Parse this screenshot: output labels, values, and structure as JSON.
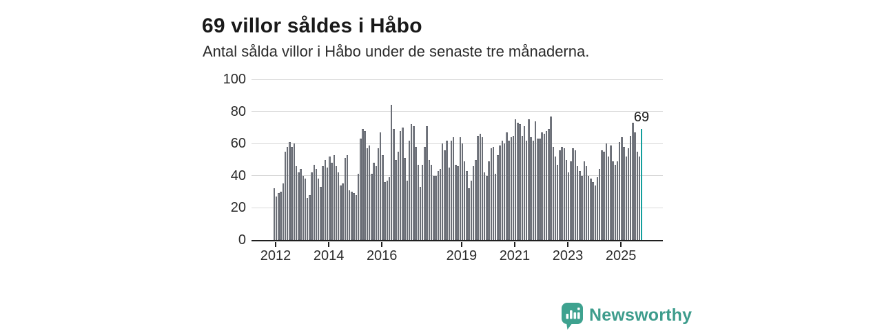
{
  "header": {
    "title": "69 villor såldes i Håbo",
    "subtitle": "Antal sålda villor i Håbo under de senaste tre månaderna."
  },
  "branding": {
    "name": "Newsworthy",
    "logo_color": "#3ea28f",
    "icon": "speech-bubble-bar-chart"
  },
  "chart_data": {
    "type": "bar",
    "title": "69 villor såldes i Håbo",
    "subtitle": "Antal sålda villor i Håbo under de senaste tre månaderna.",
    "xlabel": "",
    "ylabel": "",
    "x_start": "2012-01",
    "x_interval": "month",
    "x_end": "2025-11",
    "x_ticks": [
      2012,
      2014,
      2016,
      2019,
      2021,
      2023,
      2025
    ],
    "y_ticks": [
      0,
      20,
      40,
      60,
      80,
      100
    ],
    "ylim": [
      0,
      100
    ],
    "grid": "horizontal",
    "legend": "none",
    "bar_color": "#82858d",
    "highlight_color": "#19a8a6",
    "highlight_last": true,
    "annotation": {
      "text": "69",
      "target": "last-bar"
    },
    "values": [
      32,
      27,
      29,
      30,
      35,
      55,
      58,
      61,
      58,
      60,
      46,
      42,
      44,
      40,
      38,
      26,
      28,
      42,
      47,
      44,
      38,
      33,
      46,
      50,
      45,
      52,
      48,
      53,
      46,
      42,
      34,
      35,
      51,
      53,
      31,
      30,
      29,
      28,
      41,
      63,
      69,
      68,
      57,
      59,
      41,
      48,
      46,
      57,
      67,
      53,
      36,
      37,
      39,
      84,
      69,
      50,
      55,
      68,
      70,
      51,
      37,
      62,
      72,
      71,
      58,
      47,
      33,
      47,
      58,
      71,
      50,
      47,
      40,
      40,
      43,
      44,
      60,
      56,
      62,
      45,
      62,
      64,
      47,
      46,
      64,
      60,
      49,
      43,
      32,
      37,
      46,
      50,
      65,
      66,
      64,
      42,
      40,
      49,
      57,
      58,
      41,
      53,
      59,
      62,
      60,
      67,
      62,
      64,
      65,
      75,
      73,
      72,
      65,
      71,
      62,
      75,
      64,
      62,
      74,
      63,
      63,
      67,
      66,
      68,
      69,
      77,
      58,
      52,
      47,
      56,
      58,
      57,
      50,
      42,
      49,
      57,
      56,
      46,
      43,
      40,
      49,
      46,
      40,
      38,
      36,
      34,
      39,
      44,
      56,
      55,
      60,
      52,
      59,
      49,
      47,
      49,
      61,
      64,
      58,
      52,
      57,
      65,
      73,
      67,
      55,
      52,
      69
    ]
  }
}
